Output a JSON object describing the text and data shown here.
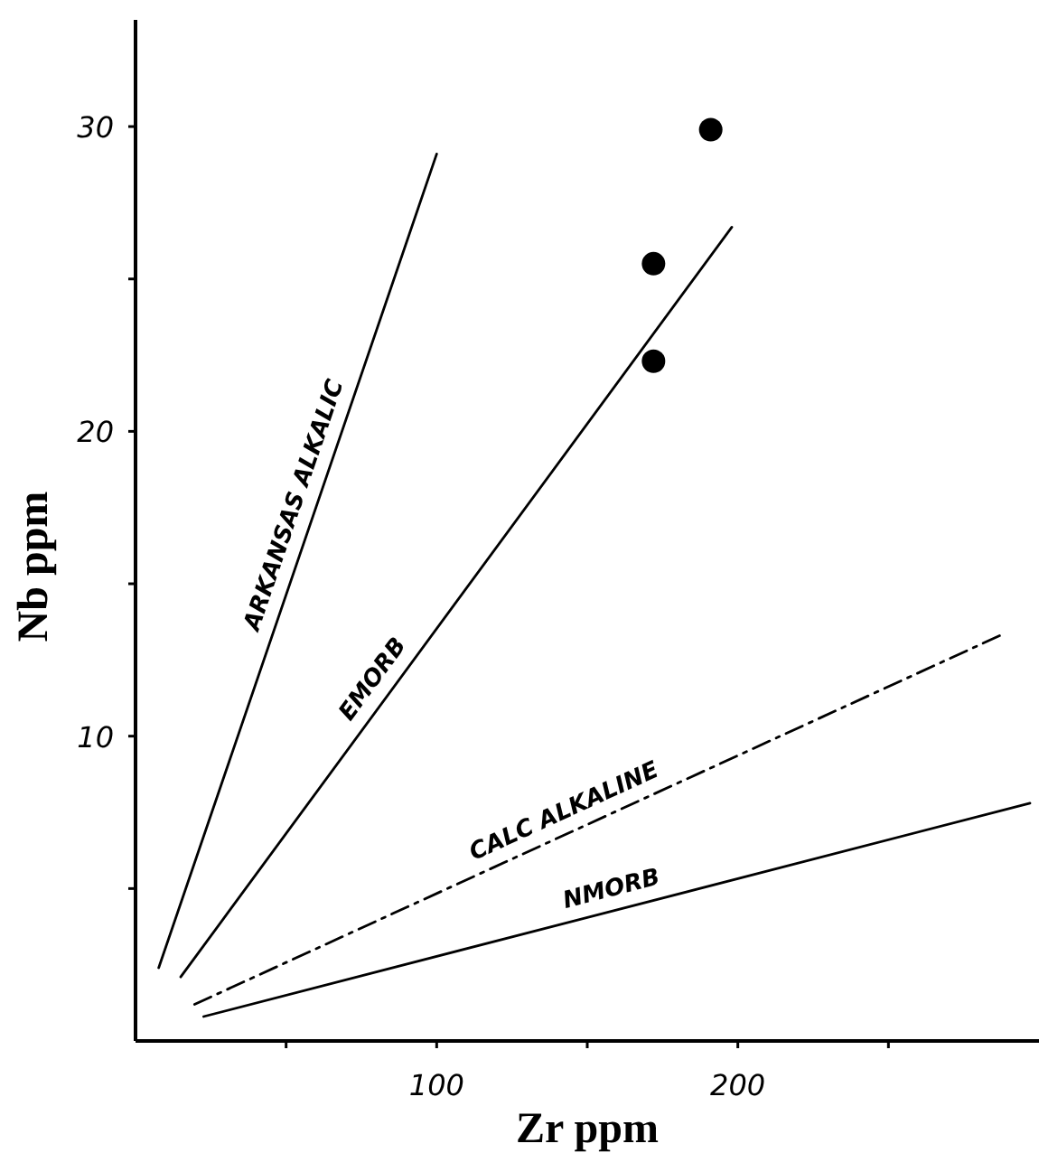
{
  "chart_data": {
    "type": "line",
    "xlabel": "Zr ppm",
    "ylabel": "Nb ppm",
    "xlim": [
      0,
      300
    ],
    "ylim": [
      0,
      33.5
    ],
    "xticks": [
      {
        "value": 50,
        "label": null
      },
      100,
      {
        "value": 150,
        "label": null
      },
      200,
      {
        "value": 250,
        "label": null
      }
    ],
    "yticks": [
      {
        "value": 5,
        "label": null
      },
      10,
      {
        "value": 15,
        "label": null
      },
      20,
      {
        "value": 25,
        "label": null
      },
      30
    ],
    "grid": false,
    "series": [
      {
        "name": "ARKANSAS ALKALIC",
        "color": "#000000",
        "line_style": "solid",
        "x": [
          7.7,
          100
        ],
        "values": [
          2.4,
          29.1
        ]
      },
      {
        "name": "EMORB",
        "color": "#000000",
        "line_style": "solid",
        "x": [
          15,
          198
        ],
        "values": [
          2.1,
          26.7
        ]
      },
      {
        "name": "CALC ALKALINE",
        "color": "#000000",
        "line_style": "dashed",
        "x": [
          19.6,
          287
        ],
        "values": [
          1.2,
          13.3
        ]
      },
      {
        "name": "NMORB",
        "color": "#000000",
        "line_style": "solid",
        "x": [
          22.6,
          297
        ],
        "values": [
          0.8,
          7.8
        ]
      },
      {
        "color": "#000000",
        "type": "scatter",
        "marker": "circle",
        "x": [
          172,
          172,
          191
        ],
        "values": [
          22.3,
          25.5,
          29.9
        ]
      }
    ]
  }
}
